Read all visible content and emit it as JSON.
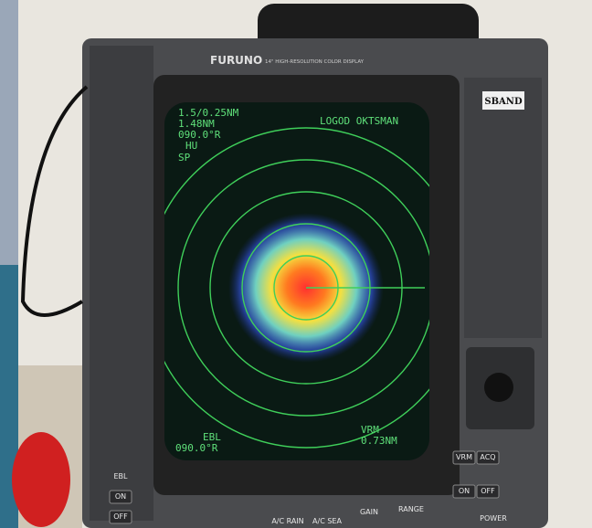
{
  "brand": "FURUNO",
  "model": "14\" HIGH-RESOLUTION COLOR DISPLAY",
  "badge": "SBAND",
  "screen": {
    "range": "1.5/0.25NM",
    "rings": "1.48NM",
    "heading": "090.0°R",
    "mode": "HU",
    "speed": "SP",
    "top_right": "LOGOD OKTSMAN",
    "ebl_label": "EBL",
    "ebl_value": "090.0°R",
    "vrm_label": "VRM",
    "vrm_value": "0.73NM"
  },
  "controls": {
    "left": [
      "EBL",
      "ON",
      "OFF"
    ],
    "right": [
      "VRM",
      "ACQ",
      "ON",
      "OFF"
    ],
    "bottom": [
      "A/C RAIN",
      "A/C SEA",
      "GAIN",
      "RANGE",
      "POWER"
    ]
  }
}
